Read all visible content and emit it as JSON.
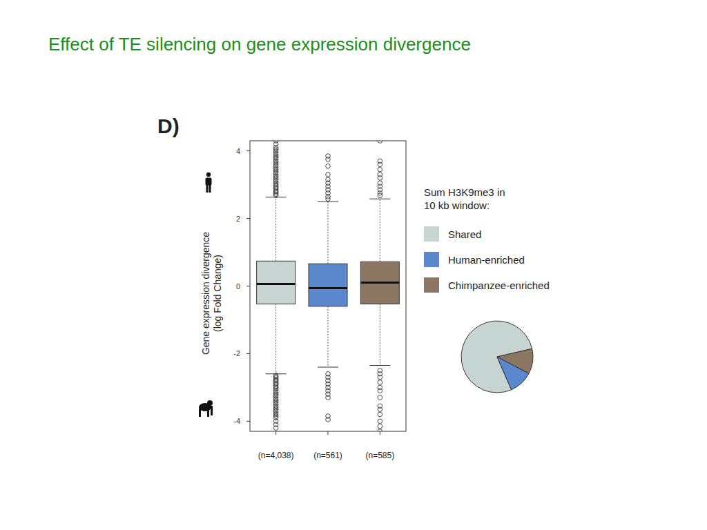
{
  "chart_data": [
    {
      "type": "box",
      "title": "Effect of TE silencing on gene expression divergence",
      "panel_label": "D)",
      "y_label": [
        "Gene expression divergence",
        "(log Fold Change)"
      ],
      "categories": [
        "(n=4,038)",
        "(n=561)",
        "(n=585)"
      ],
      "ylim": [
        -4.3,
        4.3
      ],
      "yticks": [
        -4,
        -2,
        0,
        2,
        4
      ],
      "legend_title": [
        "Sum H3K9me3 in",
        "10 kb window:"
      ],
      "legend": "right",
      "series": [
        {
          "name": "Shared",
          "color": "#c6d4d2",
          "whisker_low": -2.6,
          "q1": -0.53,
          "median": 0.06,
          "q3": 0.74,
          "whisker_high": 2.63,
          "outliers": [
            2.68,
            2.72,
            2.76,
            2.8,
            2.84,
            2.88,
            2.92,
            2.96,
            3.0,
            3.05,
            3.1,
            3.15,
            3.2,
            3.25,
            3.3,
            3.35,
            3.4,
            3.45,
            3.5,
            3.55,
            3.6,
            3.65,
            3.7,
            3.75,
            3.8,
            3.85,
            3.9,
            3.95,
            4.0,
            4.05,
            4.1,
            4.2,
            4.3,
            -2.64,
            -2.68,
            -2.72,
            -2.76,
            -2.8,
            -2.84,
            -2.88,
            -2.92,
            -2.96,
            -3.0,
            -3.05,
            -3.1,
            -3.15,
            -3.2,
            -3.25,
            -3.3,
            -3.35,
            -3.4,
            -3.45,
            -3.5,
            -3.55,
            -3.6,
            -3.65,
            -3.7,
            -3.75,
            -3.8,
            -3.85,
            -3.9,
            -4.0,
            -4.1,
            -4.2
          ]
        },
        {
          "name": "Human-enriched",
          "color": "#5b87cc",
          "whisker_low": -2.4,
          "q1": -0.6,
          "median": -0.06,
          "q3": 0.66,
          "whisker_high": 2.5,
          "outliers": [
            3.85,
            3.75,
            3.55,
            3.3,
            3.15,
            3.05,
            2.95,
            2.85,
            2.75,
            2.65,
            2.58,
            -2.6,
            -2.7,
            -2.8,
            -2.9,
            -3.0,
            -3.1,
            -3.2,
            -3.3,
            -3.85,
            -3.95
          ]
        },
        {
          "name": "Chimpanzee-enriched",
          "color": "#8c7765",
          "whisker_low": -2.35,
          "q1": -0.53,
          "median": 0.1,
          "q3": 0.72,
          "whisker_high": 2.58,
          "outliers": [
            4.3,
            3.7,
            3.6,
            3.45,
            3.3,
            3.2,
            3.05,
            2.95,
            2.85,
            2.75,
            2.68,
            -2.5,
            -2.6,
            -2.7,
            -2.85,
            -3.0,
            -3.1,
            -3.3,
            -3.55,
            -3.65,
            -3.8,
            -4.0,
            -4.15,
            -4.3
          ]
        }
      ]
    },
    {
      "type": "pie",
      "values": [
        4038,
        561,
        585
      ],
      "colors": [
        "#c6d4d2",
        "#5b87cc",
        "#8c7765"
      ]
    }
  ]
}
